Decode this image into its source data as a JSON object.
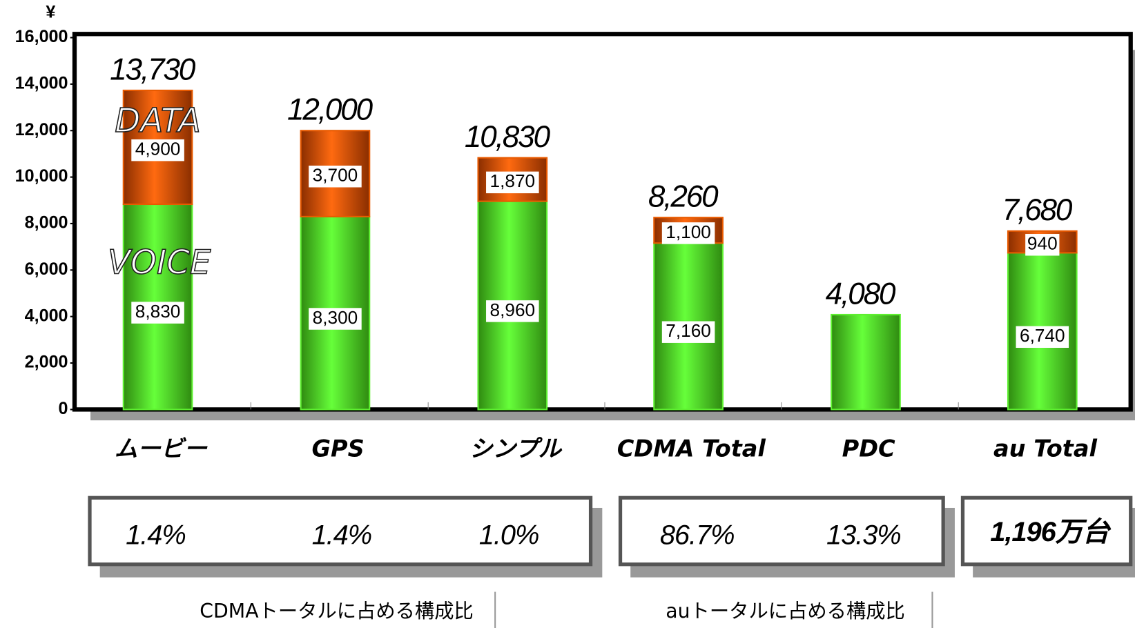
{
  "chart_data": {
    "type": "stacked-bar",
    "y_label": "¥",
    "categories": [
      "ムービー",
      "GPS",
      "シンプル",
      "CDMA Total",
      "PDC",
      "au Total"
    ],
    "series": [
      {
        "name": "VOICE",
        "color": "#5ef030",
        "values": [
          8830,
          8300,
          8960,
          7160,
          4080,
          6740
        ],
        "value_labels": [
          "8,830",
          "8,300",
          "8,960",
          "7,160",
          null,
          "6,740"
        ]
      },
      {
        "name": "DATA",
        "color": "#e85a00",
        "values": [
          4900,
          3700,
          1870,
          1100,
          null,
          940
        ],
        "value_labels": [
          "4,900",
          "3,700",
          "1,870",
          "1,100",
          null,
          "940"
        ]
      }
    ],
    "totals": [
      13730,
      12000,
      10830,
      8260,
      4080,
      7680
    ],
    "total_labels": [
      "13,730",
      "12,000",
      "10,830",
      "8,260",
      "4,080",
      "7,680"
    ],
    "ylim": [
      0,
      16000
    ],
    "yticks": [
      0,
      {
        "value": 2000,
        "label": "2,000"
      },
      {
        "value": 4000,
        "label": "4,000"
      },
      {
        "value": 6000,
        "label": "6,000"
      },
      {
        "value": 8000,
        "label": "8,000"
      },
      {
        "value": 10000,
        "label": "10,000"
      },
      {
        "value": 12000,
        "label": "12,000"
      },
      {
        "value": 14000,
        "label": "14,000"
      },
      {
        "value": 16000,
        "label": "16,000"
      }
    ],
    "share_groups": [
      {
        "caption": "CDMAトータルに占める構成比",
        "values": [
          "1.4%",
          "1.4%",
          "1.0%"
        ]
      },
      {
        "caption": "auトータルに占める構成比",
        "values": [
          "86.7%",
          "13.3%"
        ]
      }
    ],
    "subscribers": "1,196万台"
  }
}
